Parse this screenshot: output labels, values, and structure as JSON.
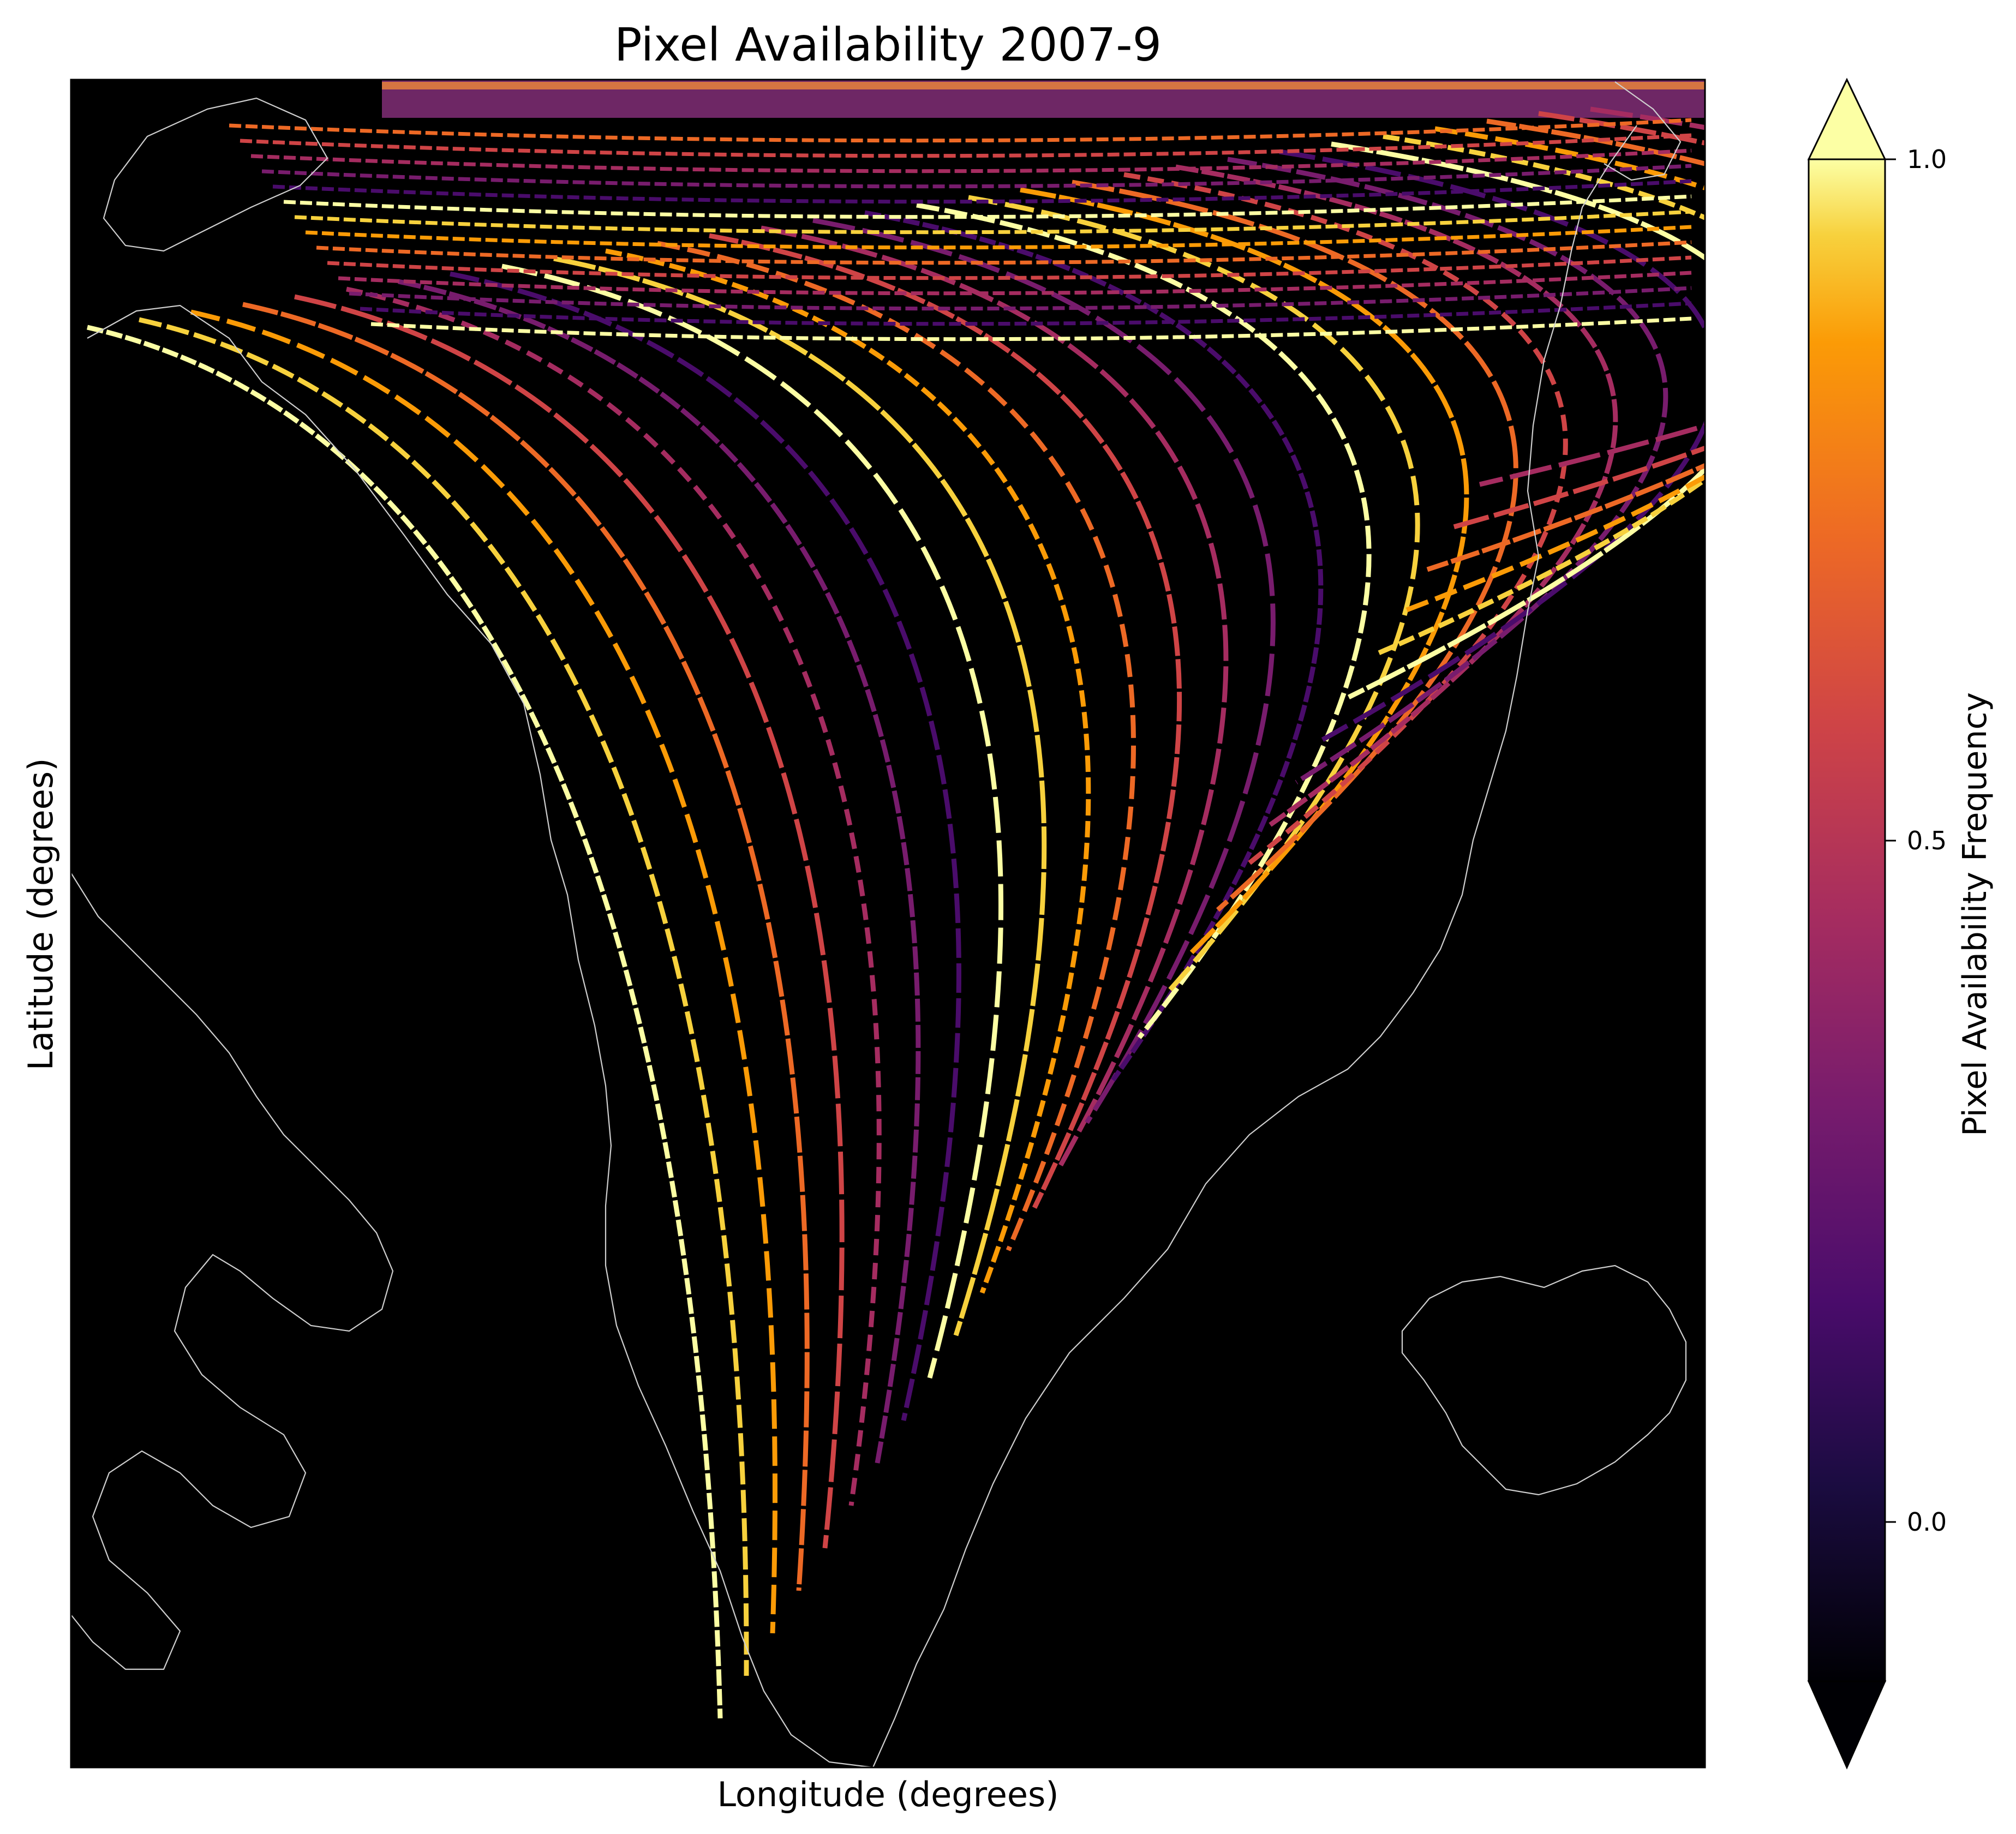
{
  "map": {
    "title": "Pixel Availability 2007-9",
    "xlabel": "Longitude (degrees)",
    "ylabel": "Latitude (degrees)",
    "background": "#000000",
    "coastline_color": "#cfcfcf",
    "colormap": "inferno",
    "colorbar": {
      "label": "Pixel Availability Frequency",
      "ticks": [
        {
          "value": 1.0,
          "label": "1.0"
        },
        {
          "value": 0.5,
          "label": "0.5"
        },
        {
          "value": 0.0,
          "label": "0.0"
        }
      ],
      "range": [
        0.0,
        1.0
      ],
      "extend": "both",
      "extend_low_color": "#000004",
      "extend_high_color": "#fcffa4"
    }
  }
}
